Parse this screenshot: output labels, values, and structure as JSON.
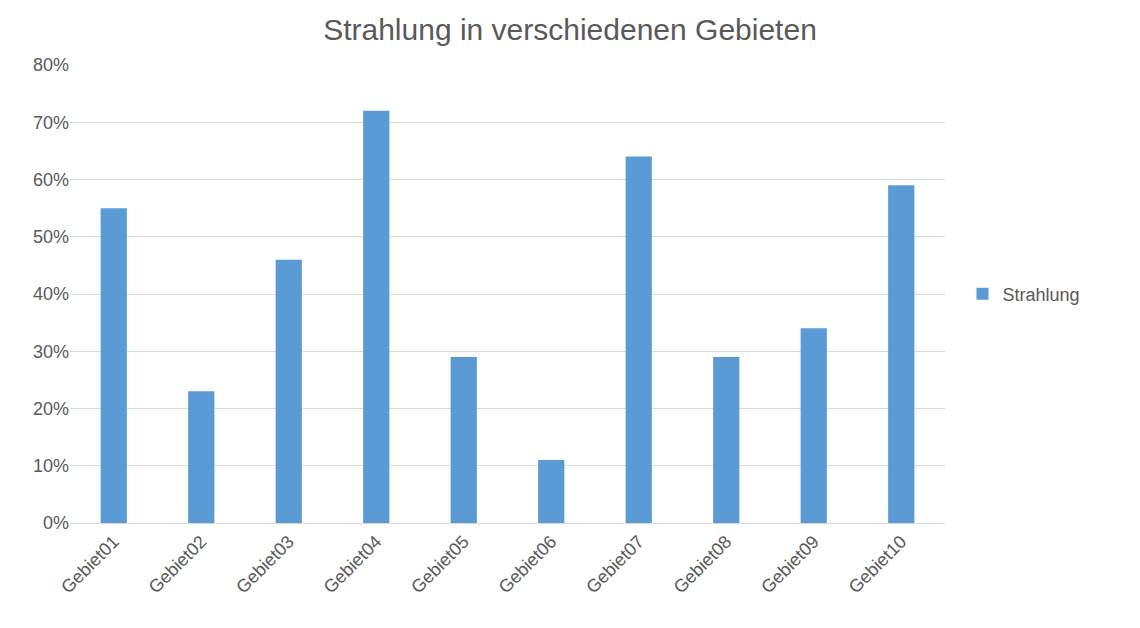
{
  "chart_data": {
    "type": "bar",
    "title": "Strahlung in verschiedenen Gebieten",
    "categories": [
      "Gebiet01",
      "Gebiet02",
      "Gebiet03",
      "Gebiet04",
      "Gebiet05",
      "Gebiet06",
      "Gebiet07",
      "Gebiet08",
      "Gebiet09",
      "Gebiet10"
    ],
    "series": [
      {
        "name": "Strahlung",
        "color": "#5b9bd5",
        "values": [
          55,
          23,
          46,
          72,
          29,
          11,
          64,
          29,
          34,
          59
        ]
      }
    ],
    "ylim": [
      0,
      80
    ],
    "yticks": [
      {
        "value": 0,
        "label": "0%"
      },
      {
        "value": 10,
        "label": "10%"
      },
      {
        "value": 20,
        "label": "20%"
      },
      {
        "value": 30,
        "label": "30%"
      },
      {
        "value": 40,
        "label": "40%"
      },
      {
        "value": 50,
        "label": "50%"
      },
      {
        "value": 60,
        "label": "60%"
      },
      {
        "value": 70,
        "label": "70%"
      },
      {
        "value": 80,
        "label": "80%"
      }
    ],
    "grid": true,
    "legend": "right"
  }
}
